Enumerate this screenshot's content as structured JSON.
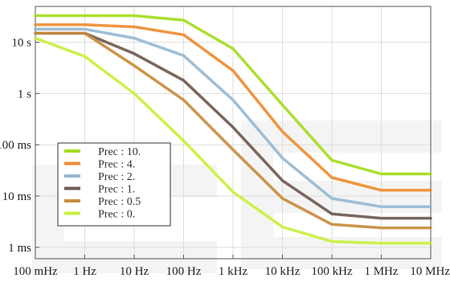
{
  "chart_data": {
    "type": "line",
    "xscale": "log",
    "yscale": "log",
    "x": [
      0.1,
      1,
      10,
      100,
      1000,
      10000,
      100000,
      1000000,
      10000000
    ],
    "xticks": [
      {
        "value": 0.1,
        "label": "100 mHz"
      },
      {
        "value": 1,
        "label": "1 Hz"
      },
      {
        "value": 10,
        "label": "10 Hz"
      },
      {
        "value": 100,
        "label": "100 Hz"
      },
      {
        "value": 1000,
        "label": "1 kHz"
      },
      {
        "value": 10000,
        "label": "10 kHz"
      },
      {
        "value": 100000,
        "label": "100 kHz"
      },
      {
        "value": 1000000,
        "label": "1 MHz"
      },
      {
        "value": 10000000,
        "label": "10 MHz"
      }
    ],
    "yticks": [
      {
        "value": 10,
        "label": "10 s"
      },
      {
        "value": 1,
        "label": "1 s"
      },
      {
        "value": 0.1,
        "label": "100 ms"
      },
      {
        "value": 0.01,
        "label": "10 ms"
      },
      {
        "value": 0.001,
        "label": "1 ms"
      }
    ],
    "xlim": [
      0.1,
      10000000
    ],
    "ylim": [
      0.0006,
      50
    ],
    "grid": true,
    "legend_position": "lower-left",
    "series": [
      {
        "name": "Prec : 10.",
        "color": "#a6dc1e",
        "values": [
          33,
          33,
          33,
          27,
          7.5,
          0.6,
          0.05,
          0.027,
          0.027
        ]
      },
      {
        "name": "Prec : 4.",
        "color": "#ef8c30",
        "values": [
          22,
          22,
          20,
          14,
          2.8,
          0.18,
          0.023,
          0.013,
          0.013
        ]
      },
      {
        "name": "Prec : 2.",
        "color": "#96b8d2",
        "values": [
          18,
          18,
          12,
          5.5,
          0.75,
          0.055,
          0.009,
          0.0062,
          0.0062
        ]
      },
      {
        "name": "Prec : 1.",
        "color": "#6e5a50",
        "values": [
          15,
          15,
          6,
          1.8,
          0.22,
          0.02,
          0.0045,
          0.0037,
          0.0037
        ]
      },
      {
        "name": "Prec : 0.5",
        "color": "#c88c3c",
        "values": [
          15,
          15,
          3.5,
          0.75,
          0.08,
          0.009,
          0.0028,
          0.0024,
          0.0024
        ]
      },
      {
        "name": "Prec : 0.",
        "color": "#c8f03c",
        "values": [
          12,
          5.3,
          1,
          0.12,
          0.012,
          0.0025,
          0.0013,
          0.0012,
          0.0012
        ]
      }
    ]
  }
}
